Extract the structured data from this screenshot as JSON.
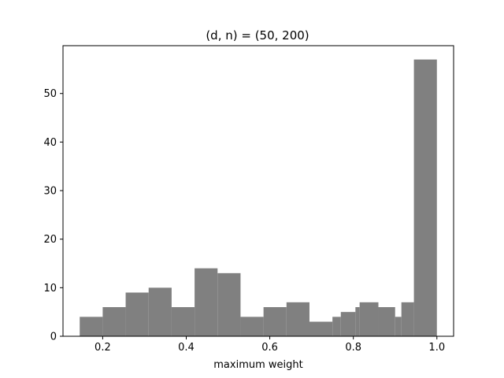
{
  "chart_data": {
    "type": "bar",
    "title": "(d, n) = (50, 200)",
    "xlabel": "maximum weight",
    "ylabel": "",
    "xlim": [
      0.105,
      1.04
    ],
    "ylim": [
      0,
      59.85
    ],
    "xticks": [
      0.2,
      0.4,
      0.6,
      0.8,
      1.0
    ],
    "xtick_labels": [
      "0.2",
      "0.4",
      "0.6",
      "0.8",
      "1.0"
    ],
    "yticks": [
      0,
      10,
      20,
      30,
      40,
      50
    ],
    "ytick_labels": [
      "0",
      "10",
      "20",
      "30",
      "40",
      "50"
    ],
    "bar_color": "#808080",
    "grid": false,
    "bins": [
      {
        "x0": 0.145,
        "x1": 0.2,
        "value": 4
      },
      {
        "x0": 0.2,
        "x1": 0.255,
        "value": 6
      },
      {
        "x0": 0.255,
        "x1": 0.31,
        "value": 9
      },
      {
        "x0": 0.31,
        "x1": 0.365,
        "value": 10
      },
      {
        "x0": 0.365,
        "x1": 0.42,
        "value": 6
      },
      {
        "x0": 0.42,
        "x1": 0.475,
        "value": 14
      },
      {
        "x0": 0.475,
        "x1": 0.53,
        "value": 13
      },
      {
        "x0": 0.53,
        "x1": 0.585,
        "value": 4
      },
      {
        "x0": 0.585,
        "x1": 0.64,
        "value": 6
      },
      {
        "x0": 0.64,
        "x1": 0.695,
        "value": 7
      },
      {
        "x0": 0.695,
        "x1": 0.75,
        "value": 3
      },
      {
        "x0": 0.75,
        "x1": 0.77,
        "value": 4
      },
      {
        "x0": 0.77,
        "x1": 0.805,
        "value": 5
      },
      {
        "x0": 0.805,
        "x1": 0.815,
        "value": 6
      },
      {
        "x0": 0.815,
        "x1": 0.86,
        "value": 7
      },
      {
        "x0": 0.86,
        "x1": 0.9,
        "value": 6
      },
      {
        "x0": 0.9,
        "x1": 0.915,
        "value": 4
      },
      {
        "x0": 0.915,
        "x1": 0.945,
        "value": 7
      },
      {
        "x0": 0.945,
        "x1": 1.0,
        "value": 57
      }
    ]
  }
}
